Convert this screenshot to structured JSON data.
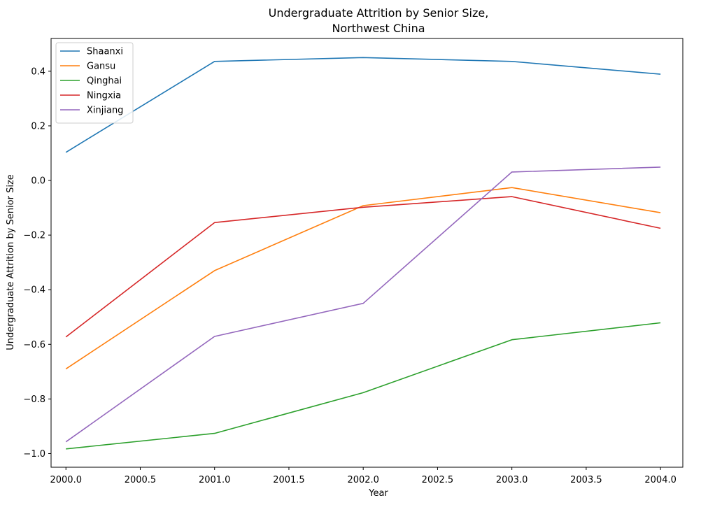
{
  "chart_data": {
    "type": "line",
    "title_line1": "Undergraduate Attrition by Senior Size,",
    "title_line2": "Northwest China",
    "xlabel": "Year",
    "ylabel": "Undergraduate Attrition by Senior Size",
    "x": [
      2000,
      2001,
      2002,
      2003,
      2004
    ],
    "xlim": [
      1999.9,
      2004.15
    ],
    "ylim": [
      -1.05,
      0.52
    ],
    "xticks": [
      2000.0,
      2000.5,
      2001.0,
      2001.5,
      2002.0,
      2002.5,
      2003.0,
      2003.5,
      2004.0
    ],
    "xtick_labels": [
      "2000.0",
      "2000.5",
      "2001.0",
      "2001.5",
      "2002.0",
      "2002.5",
      "2003.0",
      "2003.5",
      "2004.0"
    ],
    "yticks": [
      -1.0,
      -0.8,
      -0.6,
      -0.4,
      -0.2,
      0.0,
      0.2,
      0.4
    ],
    "ytick_labels": [
      "−1.0",
      "−0.8",
      "−0.6",
      "−0.4",
      "−0.2",
      "0.0",
      "0.2",
      "0.4"
    ],
    "grid": false,
    "legend_position": "top-left",
    "series": [
      {
        "name": "Shaanxi",
        "color": "#1f77b4",
        "values": [
          0.103,
          0.436,
          0.45,
          0.436,
          0.389
        ]
      },
      {
        "name": "Gansu",
        "color": "#ff7f0e",
        "values": [
          -0.69,
          -0.33,
          -0.092,
          -0.026,
          -0.118
        ]
      },
      {
        "name": "Qinghai",
        "color": "#2ca02c",
        "values": [
          -0.983,
          -0.926,
          -0.777,
          -0.583,
          -0.521
        ]
      },
      {
        "name": "Ningxia",
        "color": "#d62728",
        "values": [
          -0.573,
          -0.154,
          -0.098,
          -0.059,
          -0.175
        ]
      },
      {
        "name": "Xinjiang",
        "color": "#9467bd",
        "values": [
          -0.957,
          -0.571,
          -0.45,
          0.031,
          0.049
        ]
      }
    ]
  }
}
